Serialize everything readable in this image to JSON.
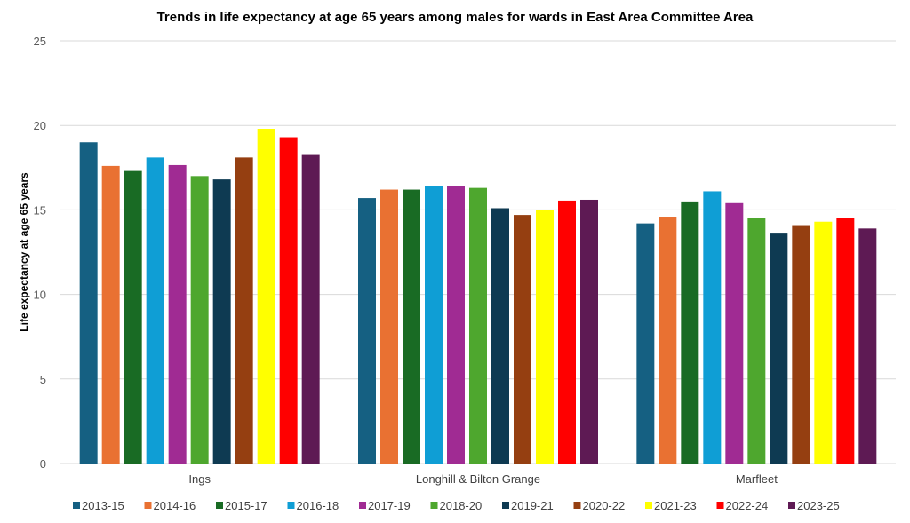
{
  "chart_data": {
    "type": "bar",
    "title": "Trends in life expectancy at  age 65 years among males for wards in East Area Committee Area",
    "xlabel": "",
    "ylabel": "Life expectancy at  age 65 years",
    "ylim": [
      0,
      25
    ],
    "yticks": [
      0,
      5,
      10,
      15,
      20,
      25
    ],
    "grid": true,
    "legend_position": "bottom",
    "categories": [
      "Ings",
      "Longhill & Bilton Grange",
      "Marfleet"
    ],
    "series": [
      {
        "name": "2013-15",
        "color": "#156082",
        "values": [
          19.0,
          15.7,
          14.2
        ]
      },
      {
        "name": "2014-16",
        "color": "#E97132",
        "values": [
          17.6,
          16.2,
          14.6
        ]
      },
      {
        "name": "2015-17",
        "color": "#196B24",
        "values": [
          17.3,
          16.2,
          15.5
        ]
      },
      {
        "name": "2016-18",
        "color": "#0F9ED5",
        "values": [
          18.1,
          16.4,
          16.1
        ]
      },
      {
        "name": "2017-19",
        "color": "#A02B93",
        "values": [
          17.65,
          16.4,
          15.4
        ]
      },
      {
        "name": "2018-20",
        "color": "#4EA72E",
        "values": [
          17.0,
          16.3,
          14.5
        ]
      },
      {
        "name": "2019-21",
        "color": "#0E3A52",
        "values": [
          16.8,
          15.1,
          13.65
        ]
      },
      {
        "name": "2020-22",
        "color": "#953F11",
        "values": [
          18.1,
          14.7,
          14.1
        ]
      },
      {
        "name": "2021-23",
        "color": "#FFFF00",
        "values": [
          19.8,
          15.0,
          14.3
        ]
      },
      {
        "name": "2022-24",
        "color": "#FF0000",
        "values": [
          19.3,
          15.55,
          14.5
        ]
      },
      {
        "name": "2023-25",
        "color": "#5E1A54",
        "values": [
          18.3,
          15.6,
          13.9
        ]
      }
    ]
  }
}
